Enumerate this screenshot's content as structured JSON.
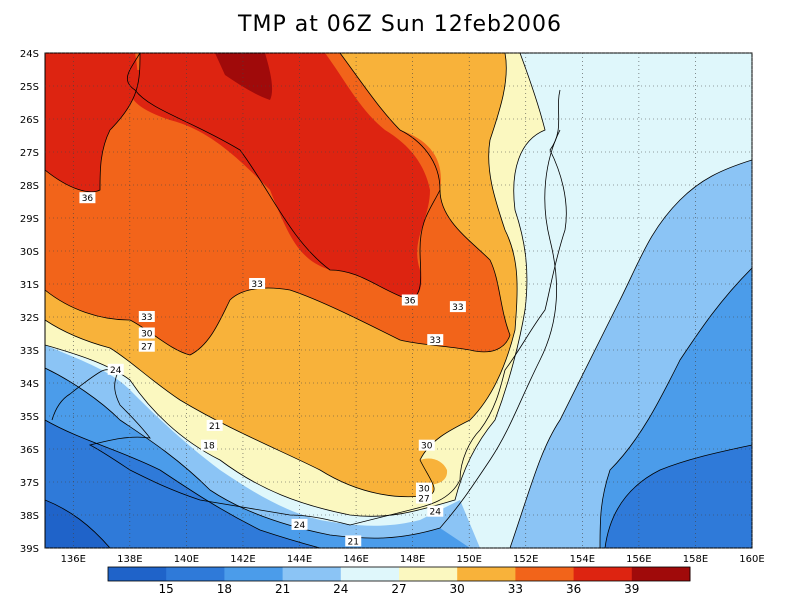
{
  "title": "TMP at 06Z Sun 12feb2006",
  "axes": {
    "lat_labels": [
      "24S",
      "25S",
      "26S",
      "27S",
      "28S",
      "29S",
      "30S",
      "31S",
      "32S",
      "33S",
      "34S",
      "35S",
      "36S",
      "37S",
      "38S",
      "39S"
    ],
    "lon_labels": [
      "136E",
      "138E",
      "140E",
      "142E",
      "144E",
      "146E",
      "148E",
      "150E",
      "152E",
      "154E",
      "156E",
      "158E",
      "160E"
    ],
    "lat_range": [
      -39,
      -24
    ],
    "lon_range": [
      135,
      160
    ]
  },
  "colorbar": {
    "colors": [
      "#1f63c9",
      "#2f7ad9",
      "#4b9cea",
      "#8bc4f5",
      "#dff7fb",
      "#fbf8c0",
      "#f8b23a",
      "#f2641a",
      "#dd2411",
      "#a00a0a"
    ],
    "labels": [
      "15",
      "18",
      "21",
      "24",
      "27",
      "30",
      "33",
      "36",
      "39"
    ]
  },
  "contour_labels": [
    {
      "text": "36",
      "lon": 136.5,
      "lat": -28.4
    },
    {
      "text": "33",
      "lon": 142.5,
      "lat": -31.0
    },
    {
      "text": "36",
      "lon": 147.9,
      "lat": -31.5
    },
    {
      "text": "33",
      "lon": 149.6,
      "lat": -31.7
    },
    {
      "text": "33",
      "lon": 148.8,
      "lat": -32.7
    },
    {
      "text": "33",
      "lon": 138.6,
      "lat": -32.0
    },
    {
      "text": "30",
      "lon": 138.6,
      "lat": -32.5
    },
    {
      "text": "27",
      "lon": 138.6,
      "lat": -32.9
    },
    {
      "text": "24",
      "lon": 137.5,
      "lat": -33.6
    },
    {
      "text": "21",
      "lon": 141.0,
      "lat": -35.3
    },
    {
      "text": "18",
      "lon": 140.8,
      "lat": -35.9
    },
    {
      "text": "30",
      "lon": 148.5,
      "lat": -35.9
    },
    {
      "text": "30",
      "lon": 148.4,
      "lat": -37.2
    },
    {
      "text": "27",
      "lon": 148.4,
      "lat": -37.5
    },
    {
      "text": "24",
      "lon": 148.8,
      "lat": -37.9
    },
    {
      "text": "24",
      "lon": 144.0,
      "lat": -38.3
    },
    {
      "text": "21",
      "lon": 145.9,
      "lat": -38.8
    }
  ]
}
